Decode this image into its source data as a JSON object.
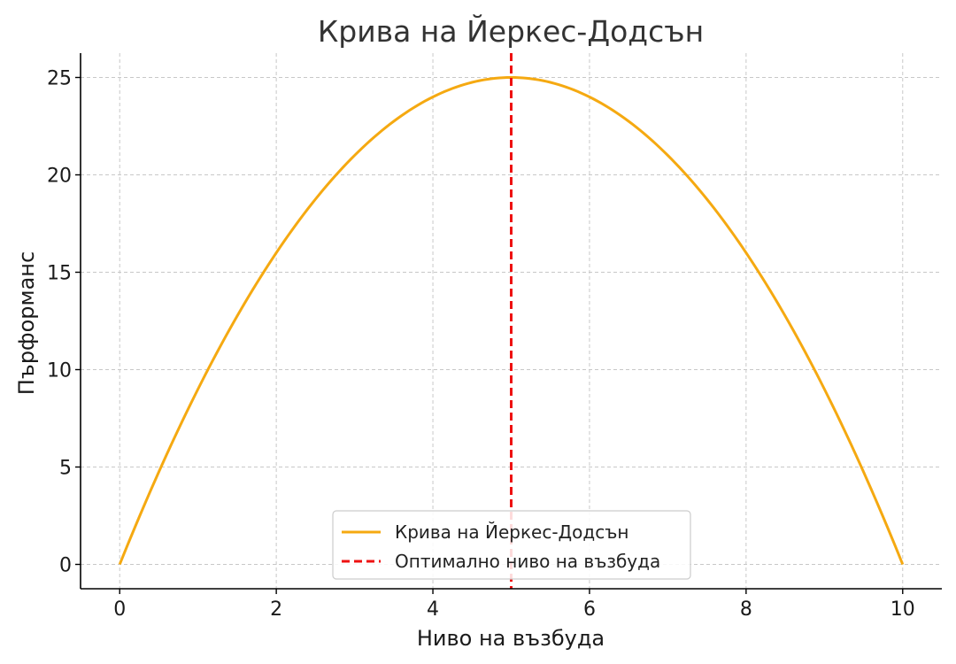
{
  "chart_data": {
    "type": "line",
    "title": "Крива на Йеркес-Додсън",
    "xlabel": "Ниво на възбуда",
    "ylabel": "Пърформанс",
    "xlim": [
      -0.5,
      10.5
    ],
    "ylim": [
      -1.25,
      26.25
    ],
    "x_ticks": [
      0,
      2,
      4,
      6,
      8,
      10
    ],
    "y_ticks": [
      0,
      5,
      10,
      15,
      20,
      25
    ],
    "grid": true,
    "legend_position": "lower-center",
    "series": [
      {
        "name": "Крива на Йеркес-Додсън",
        "color": "#f5a911",
        "style": "solid",
        "x": [
          0,
          0.5,
          1,
          1.5,
          2,
          2.5,
          3,
          3.5,
          4,
          4.5,
          5,
          5.5,
          6,
          6.5,
          7,
          7.5,
          8,
          8.5,
          9,
          9.5,
          10
        ],
        "y": [
          0,
          4.75,
          9,
          12.75,
          16,
          18.75,
          21,
          22.75,
          24,
          24.75,
          25,
          24.75,
          24,
          22.75,
          21,
          18.75,
          16,
          12.75,
          9,
          4.75,
          0
        ]
      },
      {
        "name": "Оптимално ниво на възбуда",
        "color": "#ee1111",
        "style": "dashed",
        "type": "vline",
        "x_value": 5
      }
    ]
  }
}
